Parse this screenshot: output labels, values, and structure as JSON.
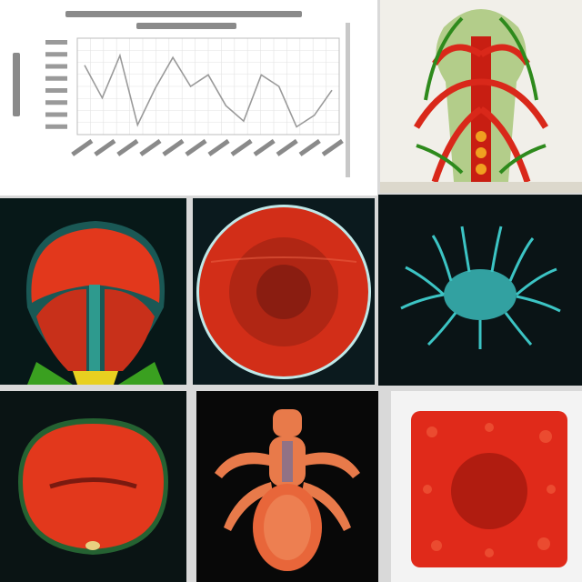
{
  "chart_data": {
    "type": "line",
    "title": "",
    "xlabel": "",
    "ylabel": "",
    "grid": true,
    "series": [
      {
        "values": [
          0.72,
          0.38,
          0.82,
          0.1,
          0.48,
          0.8,
          0.5,
          0.62,
          0.3,
          0.14,
          0.62,
          0.5,
          0.08,
          0.2,
          0.46
        ]
      }
    ]
  },
  "colors": {
    "line": "#9a9a9a",
    "grid": "#e3e3e3",
    "specimen_red": "#e2381c",
    "vein_green": "#3fa01e",
    "neural_cyan": "#3cc4c4"
  }
}
